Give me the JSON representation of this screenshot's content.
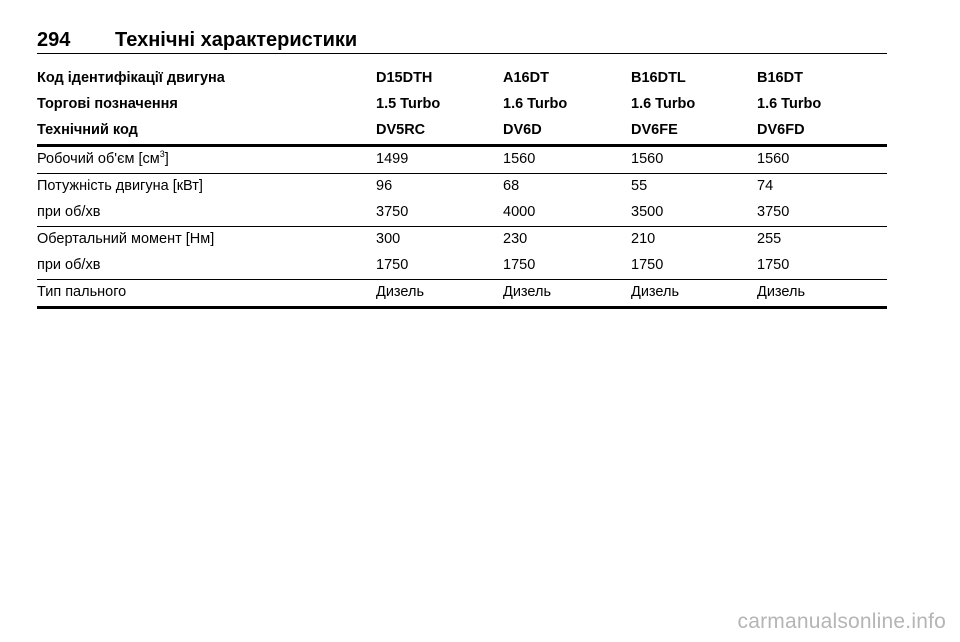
{
  "header": {
    "page_number": "294",
    "title": "Технічні характеристики"
  },
  "table": {
    "head_rows": [
      {
        "label": "Код ідентифікації двигуна",
        "values": [
          "D15DTH",
          "A16DT",
          "B16DTL",
          "B16DT"
        ]
      },
      {
        "label": "Торгові позначення",
        "values": [
          "1.5 Turbo",
          "1.6 Turbo",
          "1.6 Turbo",
          "1.6 Turbo"
        ]
      },
      {
        "label": "Технічний код",
        "values": [
          "DV5RC",
          "DV6D",
          "DV6FE",
          "DV6FD"
        ]
      }
    ],
    "displacement": {
      "label_prefix": "Робочий об'єм [см",
      "label_sup": "3",
      "label_suffix": "]",
      "values": [
        "1499",
        "1560",
        "1560",
        "1560"
      ]
    },
    "power": {
      "label": "Потужність двигуна [кВт]",
      "values": [
        "96",
        "68",
        "55",
        "74"
      ]
    },
    "power_rpm": {
      "label": "при об/хв",
      "values": [
        "3750",
        "4000",
        "3500",
        "3750"
      ]
    },
    "torque": {
      "label": "Обертальний момент [Нм]",
      "values": [
        "300",
        "230",
        "210",
        "255"
      ]
    },
    "torque_rpm": {
      "label": "при об/хв",
      "values": [
        "1750",
        "1750",
        "1750",
        "1750"
      ]
    },
    "fuel": {
      "label": "Тип пального",
      "values": [
        "Дизель",
        "Дизель",
        "Дизель",
        "Дизель"
      ]
    }
  },
  "watermark": "carmanualsonline.info"
}
